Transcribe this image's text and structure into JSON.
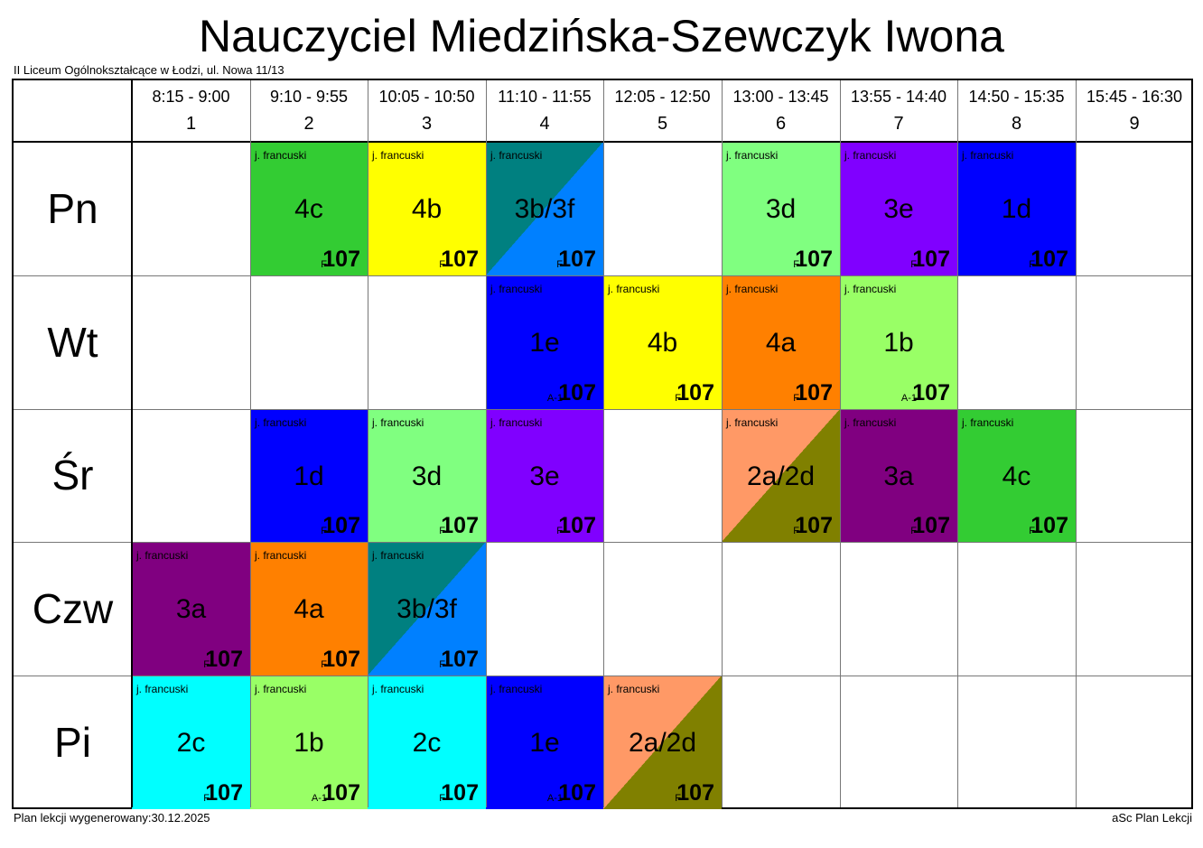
{
  "title": "Nauczyciel Miedzińska-Szewczyk Iwona",
  "school": "II Liceum Ogólnokształcące w Łodzi, ul. Nowa 11/13",
  "periods": [
    {
      "time": "8:15 - 9:00",
      "num": "1"
    },
    {
      "time": "9:10 - 9:55",
      "num": "2"
    },
    {
      "time": "10:05 - 10:50",
      "num": "3"
    },
    {
      "time": "11:10 - 11:55",
      "num": "4"
    },
    {
      "time": "12:05 - 12:50",
      "num": "5"
    },
    {
      "time": "13:00 - 13:45",
      "num": "6"
    },
    {
      "time": "13:55 - 14:40",
      "num": "7"
    },
    {
      "time": "14:50 - 15:35",
      "num": "8"
    },
    {
      "time": "15:45 - 16:30",
      "num": "9"
    }
  ],
  "days": [
    "Pn",
    "Wt",
    "Śr",
    "Czw",
    "Pi"
  ],
  "lessons": [
    {
      "day": 0,
      "period": 2,
      "subject": "j. francuski",
      "class": "4c",
      "group": "F",
      "room": "107",
      "colors": [
        "#33cc33"
      ],
      "text": "#000000"
    },
    {
      "day": 0,
      "period": 3,
      "subject": "j. francuski",
      "class": "4b",
      "group": "F",
      "room": "107",
      "colors": [
        "#ffff00"
      ],
      "text": "#000000"
    },
    {
      "day": 0,
      "period": 4,
      "subject": "j. francuski",
      "class": "3b/3f",
      "group": "F",
      "room": "107",
      "colors": [
        "#008080",
        "#0080ff"
      ],
      "text": "#000000"
    },
    {
      "day": 0,
      "period": 6,
      "subject": "j. francuski",
      "class": "3d",
      "group": "F",
      "room": "107",
      "colors": [
        "#80ff80"
      ],
      "text": "#000000"
    },
    {
      "day": 0,
      "period": 7,
      "subject": "j. francuski",
      "class": "3e",
      "group": "F",
      "room": "107",
      "colors": [
        "#8000ff"
      ],
      "text": "#000000"
    },
    {
      "day": 0,
      "period": 8,
      "subject": "j. francuski",
      "class": "1d",
      "group": "F",
      "room": "107",
      "colors": [
        "#0000ff"
      ],
      "text": "#000000"
    },
    {
      "day": 1,
      "period": 4,
      "subject": "j. francuski",
      "class": "1e",
      "group": "A-1",
      "room": "107",
      "colors": [
        "#0000ff"
      ],
      "text": "#000000"
    },
    {
      "day": 1,
      "period": 5,
      "subject": "j. francuski",
      "class": "4b",
      "group": "F",
      "room": "107",
      "colors": [
        "#ffff00"
      ],
      "text": "#000000"
    },
    {
      "day": 1,
      "period": 6,
      "subject": "j. francuski",
      "class": "4a",
      "group": "F",
      "room": "107",
      "colors": [
        "#ff8000"
      ],
      "text": "#000000"
    },
    {
      "day": 1,
      "period": 7,
      "subject": "j. francuski",
      "class": "1b",
      "group": "A-1",
      "room": "107",
      "colors": [
        "#99ff66"
      ],
      "text": "#000000"
    },
    {
      "day": 2,
      "period": 2,
      "subject": "j. francuski",
      "class": "1d",
      "group": "F",
      "room": "107",
      "colors": [
        "#0000ff"
      ],
      "text": "#000000"
    },
    {
      "day": 2,
      "period": 3,
      "subject": "j. francuski",
      "class": "3d",
      "group": "F",
      "room": "107",
      "colors": [
        "#80ff80"
      ],
      "text": "#000000"
    },
    {
      "day": 2,
      "period": 4,
      "subject": "j. francuski",
      "class": "3e",
      "group": "F",
      "room": "107",
      "colors": [
        "#8000ff"
      ],
      "text": "#000000"
    },
    {
      "day": 2,
      "period": 6,
      "subject": "j. francuski",
      "class": "2a/2d",
      "group": "F",
      "room": "107",
      "colors": [
        "#ff9966",
        "#808000"
      ],
      "text": "#000000"
    },
    {
      "day": 2,
      "period": 7,
      "subject": "j. francuski",
      "class": "3a",
      "group": "F",
      "room": "107",
      "colors": [
        "#800080"
      ],
      "text": "#000000"
    },
    {
      "day": 2,
      "period": 8,
      "subject": "j. francuski",
      "class": "4c",
      "group": "F",
      "room": "107",
      "colors": [
        "#33cc33"
      ],
      "text": "#000000"
    },
    {
      "day": 3,
      "period": 1,
      "subject": "j. francuski",
      "class": "3a",
      "group": "F",
      "room": "107",
      "colors": [
        "#800080"
      ],
      "text": "#000000"
    },
    {
      "day": 3,
      "period": 2,
      "subject": "j. francuski",
      "class": "4a",
      "group": "F",
      "room": "107",
      "colors": [
        "#ff8000"
      ],
      "text": "#000000"
    },
    {
      "day": 3,
      "period": 3,
      "subject": "j. francuski",
      "class": "3b/3f",
      "group": "F",
      "room": "107",
      "colors": [
        "#008080",
        "#0080ff"
      ],
      "text": "#000000"
    },
    {
      "day": 4,
      "period": 1,
      "subject": "j. francuski",
      "class": "2c",
      "group": "F",
      "room": "107",
      "colors": [
        "#00ffff"
      ],
      "text": "#000000"
    },
    {
      "day": 4,
      "period": 2,
      "subject": "j. francuski",
      "class": "1b",
      "group": "A-1",
      "room": "107",
      "colors": [
        "#99ff66"
      ],
      "text": "#000000"
    },
    {
      "day": 4,
      "period": 3,
      "subject": "j. francuski",
      "class": "2c",
      "group": "F",
      "room": "107",
      "colors": [
        "#00ffff"
      ],
      "text": "#000000"
    },
    {
      "day": 4,
      "period": 4,
      "subject": "j. francuski",
      "class": "1e",
      "group": "A-1",
      "room": "107",
      "colors": [
        "#0000ff"
      ],
      "text": "#000000"
    },
    {
      "day": 4,
      "period": 5,
      "subject": "j. francuski",
      "class": "2a/2d",
      "group": "F",
      "room": "107",
      "colors": [
        "#ff9966",
        "#808000"
      ],
      "text": "#000000"
    }
  ],
  "footer": {
    "generated": "Plan lekcji wygenerowany:30.12.2025",
    "app": "aSc Plan Lekcji"
  }
}
